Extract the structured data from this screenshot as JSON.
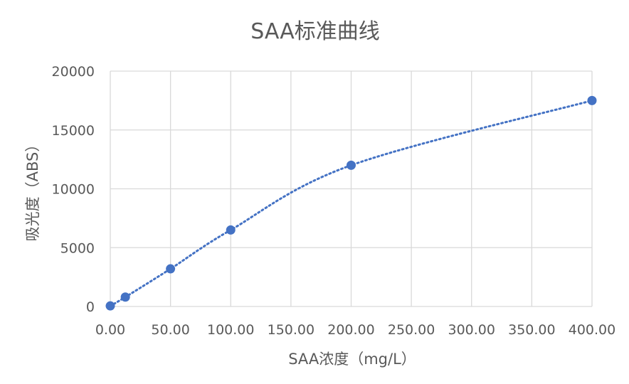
{
  "chart_data": {
    "type": "scatter",
    "title": "SAA标准曲线",
    "xlabel": "SAA浓度（mg/L）",
    "ylabel": "吸光度（ABS）",
    "xlim": [
      0,
      400
    ],
    "ylim": [
      0,
      20000
    ],
    "x_ticks": [
      "0.00",
      "50.00",
      "100.00",
      "150.00",
      "200.00",
      "250.00",
      "300.00",
      "350.00",
      "400.00"
    ],
    "y_ticks": [
      "0",
      "5000",
      "10000",
      "15000",
      "20000"
    ],
    "grid": true,
    "legend": "none",
    "color": "#4472c4",
    "line_style": "dotted smooth",
    "series": [
      {
        "x": [
          0,
          12.5,
          50,
          100,
          200,
          400
        ],
        "y": [
          50,
          800,
          3200,
          6500,
          12000,
          17500
        ]
      }
    ]
  }
}
